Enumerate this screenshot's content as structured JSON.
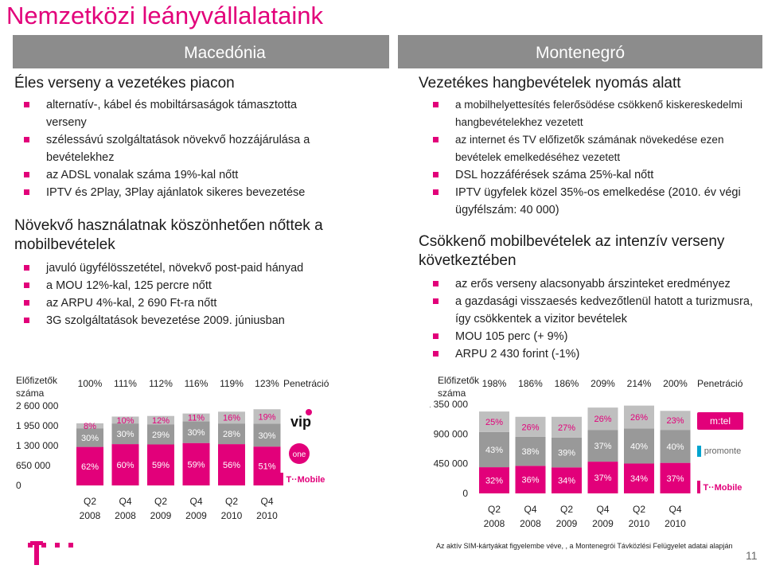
{
  "title": "Nemzetközi leányvállalataink",
  "left": {
    "header": "Macedónia",
    "section1": {
      "heading": "Éles verseny a vezetékes piacon",
      "bullets": [
        "alternatív-, kábel és mobiltársaságok támasztotta verseny",
        "szélessávú szolgáltatások növekvő hozzájárulása a bevételekhez",
        "az ADSL vonalak száma 19%-kal nőtt",
        "IPTV és 2Play, 3Play ajánlatok sikeres bevezetése"
      ]
    },
    "section2": {
      "heading": "Növekvő használatnak köszönhetően nőttek a mobilbevételek",
      "bullets": [
        "javuló ügyfélösszetétel, növekvő post-paid hányad",
        "a MOU 12%-kal, 125 percre nőtt",
        "az ARPU 4%-kal, 2 690 Ft-ra nőtt",
        "3G szolgáltatások bevezetése  2009. júniusban"
      ]
    }
  },
  "right": {
    "header": "Montenegró",
    "section1": {
      "heading": "Vezetékes hangbevételek nyomás alatt",
      "bullets": [
        "a mobilhelyettesítés felerősödése csökkenő kiskereskedelmi hangbevételekhez vezetett",
        "az internet és TV előfizetők számának növekedése ezen bevételek emelkedéséhez vezetett",
        "DSL hozzáférések száma 25%-kal nőtt",
        "IPTV ügyfelek közel 35%-os emelkedése (2010. év végi ügyfélszám: 40 000)"
      ]
    },
    "section2": {
      "heading": "Csökkenő mobilbevételek az intenzív verseny következtében",
      "bullets": [
        "az erős verseny alacsonyabb árszinteket eredményez",
        "a gazdasági visszaesés kedvezőtlenül hatott a turizmusra, így csökkentek a vizitor bevételek",
        "MOU 105 perc (+ 9%)",
        "ARPU 2 430 forint (-1%)"
      ]
    }
  },
  "chart_data": [
    {
      "type": "bar",
      "stacked": true,
      "title": "",
      "ylabel": "Előfizetők száma",
      "yticks": [
        "2 600 000",
        "1 950 000",
        "1 300 000",
        "650 000",
        "0"
      ],
      "ylim": [
        0,
        2600000
      ],
      "categories": [
        "Q2 2008",
        "Q4 2008",
        "Q2 2009",
        "Q4 2009",
        "Q2 2010",
        "Q4 2010"
      ],
      "top_labels": [
        "100%",
        "111%",
        "112%",
        "116%",
        "119%",
        "123%"
      ],
      "penetration_label": "Penetráció",
      "series": [
        {
          "name": "T-Mobile",
          "share_labels": [
            "62%",
            "60%",
            "59%",
            "59%",
            "56%",
            "51%"
          ],
          "color": "#e2007a"
        },
        {
          "name": "one",
          "share_labels": [
            "30%",
            "30%",
            "29%",
            "30%",
            "28%",
            "30%"
          ],
          "color": "#999999"
        },
        {
          "name": "vip",
          "share_labels": [
            "8%",
            "10%",
            "12%",
            "11%",
            "16%",
            "19%"
          ],
          "color": "#bfbfbf"
        }
      ],
      "totals": [
        2030000,
        2250000,
        2270000,
        2350000,
        2410000,
        2490000
      ],
      "logos": [
        "vip",
        "one",
        "T··Mobile"
      ]
    },
    {
      "type": "bar",
      "stacked": true,
      "title": "",
      "ylabel": "Előfizetők száma",
      "yticks": [
        "1 350 000",
        "900 000",
        "450 000",
        "0"
      ],
      "ylim": [
        0,
        1350000
      ],
      "categories": [
        "Q2 2008",
        "Q4 2008",
        "Q2 2009",
        "Q4 2009",
        "Q2 2010",
        "Q4 2010"
      ],
      "top_labels": [
        "198%",
        "186%",
        "186%",
        "209%",
        "214%",
        "200%"
      ],
      "penetration_label": "Penetráció",
      "series": [
        {
          "name": "T-Mobile",
          "share_labels": [
            "32%",
            "36%",
            "34%",
            "37%",
            "34%",
            "37%"
          ],
          "color": "#e2007a"
        },
        {
          "name": "promonte",
          "share_labels": [
            "43%",
            "38%",
            "39%",
            "37%",
            "40%",
            "40%"
          ],
          "color": "#999999"
        },
        {
          "name": "mtel",
          "share_labels": [
            "25%",
            "26%",
            "27%",
            "26%",
            "26%",
            "23%"
          ],
          "color": "#bfbfbf"
        }
      ],
      "totals": [
        1240000,
        1160000,
        1160000,
        1300000,
        1330000,
        1250000
      ],
      "logos": [
        "m:tel",
        "promonte",
        "T··Mobile"
      ]
    }
  ],
  "footnote": "Az aktív SIM-kártyákat figyelembe véve, , a Montenegrói Távközlési Felügyelet adatai alapján",
  "page_number": "11",
  "colors": {
    "magenta": "#e2007a",
    "header_gray": "#8c8c8c"
  }
}
